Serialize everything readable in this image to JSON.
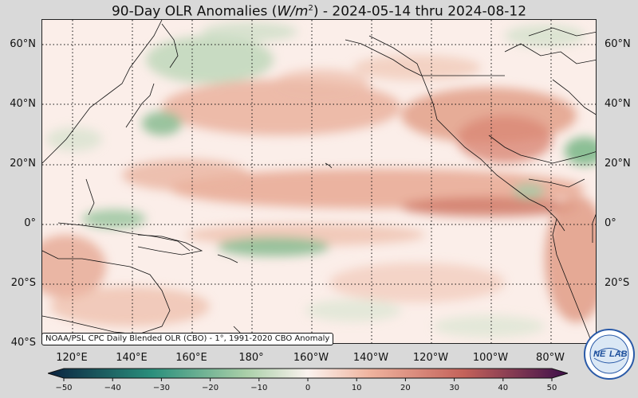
{
  "title": "90-Day OLR Anomalies (W/m²) - 2024-05-14 thru 2024-08-12",
  "title_parts": {
    "prefix": "90-Day OLR Anomalies (",
    "unit_italic": "W/m",
    "unit_exp": "2",
    "suffix": ") - 2024-05-14 thru 2024-08-12"
  },
  "lat_labels": [
    "60°N",
    "40°N",
    "20°N",
    "0°",
    "20°S",
    "40°S"
  ],
  "lon_labels": [
    "120°E",
    "140°E",
    "160°E",
    "180°",
    "160°W",
    "140°W",
    "120°W",
    "100°W",
    "80°W"
  ],
  "source_note": "NOAA/PSL CPC Daily Blended OLR (CBO) - 1°, 1991-2020 CBO Anomaly",
  "colorbar": {
    "ticks": [
      "−50",
      "−40",
      "−30",
      "−20",
      "−10",
      "0",
      "10",
      "20",
      "30",
      "40",
      "50"
    ],
    "min": -50,
    "max": 50,
    "colors": {
      "strong_negative": "#0b2340",
      "moderate_negative": "#2a8f7c",
      "weak_negative": "#a9cfa8",
      "neutral": "#fbf3ef",
      "weak_positive": "#efb39e",
      "moderate_positive": "#c4625a",
      "strong_positive": "#3d0f4a"
    }
  },
  "logo": {
    "text_left": "NE",
    "text_right": "LAB",
    "symbol": "psl-globe-logo"
  }
}
